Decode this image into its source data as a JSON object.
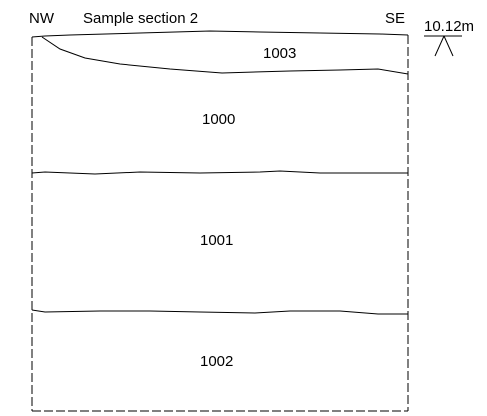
{
  "section": {
    "direction_left": "NW",
    "title": "Sample section 2",
    "direction_right": "SE"
  },
  "datum": {
    "level_label": "10.12m"
  },
  "contexts": [
    {
      "number": "1003"
    },
    {
      "number": "1000"
    },
    {
      "number": "1001"
    },
    {
      "number": "1002"
    }
  ]
}
